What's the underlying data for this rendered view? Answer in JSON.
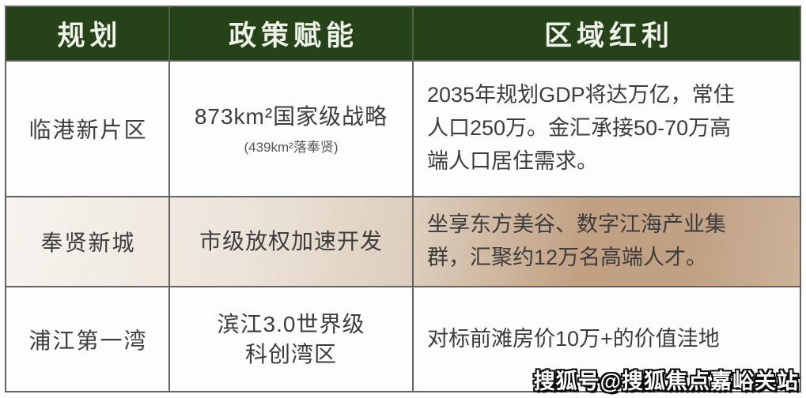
{
  "colors": {
    "header_bg": "#264219",
    "header_text": "#eef2e8",
    "body_text": "#3c3c3c",
    "note_text": "#565656",
    "border": "#636363",
    "row2_gradient_start": "#f6f3ee",
    "row2_gradient_mid": "#dccdbb",
    "row2_gradient_end": "#ccb29a",
    "watermark_fill": "#ffffff",
    "watermark_outline": "#0c0c0c"
  },
  "chart_data": {
    "type": "table",
    "columns": [
      "规划",
      "政策赋能",
      "区域红利"
    ],
    "rows": [
      {
        "plan": "临港新片区",
        "policy": "873km²国家级战略",
        "policy_note": "(439km²落奉贤)",
        "benefit": "2035年规划GDP将达万亿，常住人口250万。金汇承接50-70万高端人口居住需求。"
      },
      {
        "plan": "奉贤新城",
        "policy": "市级放权加速开发",
        "policy_note": "",
        "benefit": "坐享东方美谷、数字江海产业集群，汇聚约12万名高端人才。"
      },
      {
        "plan": "浦江第一湾",
        "policy": "滨江3.0世界级\n科创湾区",
        "policy_note": "",
        "benefit": "对标前滩房价10万+的价值洼地"
      }
    ],
    "title": "",
    "legend": "none",
    "grid": "on"
  },
  "watermark": {
    "text": "搜狐号@搜狐焦点嘉峪关站"
  }
}
